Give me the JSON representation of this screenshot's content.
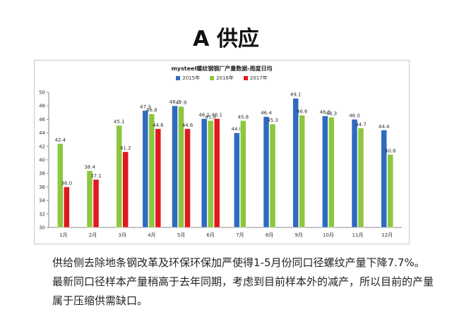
{
  "slide": {
    "title": "A 供应",
    "body_text": "供给侧去除地条钢改革及环保环保加严使得1-5月份同口径螺纹产量下降7.7%。最新同口径样本产量稍高于去年同期，考虑到目前样本外的减产，所以目前的产量属于压缩供需缺口。"
  },
  "colors": {
    "series_2015": "#2e6bbf",
    "series_2016": "#8dc63f",
    "series_2017": "#e0191f"
  },
  "chart_data": {
    "type": "bar",
    "title": "mysteel螺纹钢钢厂产量数据-周度日均",
    "categories": [
      "1月",
      "2月",
      "3月",
      "4月",
      "5月",
      "6月",
      "7月",
      "8月",
      "9月",
      "10月",
      "11月",
      "12月"
    ],
    "ylim": [
      30,
      50
    ],
    "yticks": [
      30,
      32,
      34,
      36,
      38,
      40,
      42,
      44,
      46,
      48,
      50
    ],
    "grid": false,
    "legend_position": "top",
    "series": [
      {
        "name": "2015年",
        "values": [
          null,
          null,
          null,
          47.3,
          48.0,
          46.1,
          44.0,
          46.4,
          49.1,
          46.5,
          46.0,
          44.4
        ]
      },
      {
        "name": "2016年",
        "values": [
          42.4,
          38.4,
          45.1,
          46.8,
          47.9,
          45.8,
          45.8,
          45.3,
          46.6,
          46.3,
          44.7,
          40.8
        ]
      },
      {
        "name": "2017年",
        "values": [
          36.0,
          37.1,
          41.2,
          44.6,
          44.6,
          46.1,
          null,
          null,
          null,
          null,
          null,
          null
        ]
      }
    ]
  }
}
